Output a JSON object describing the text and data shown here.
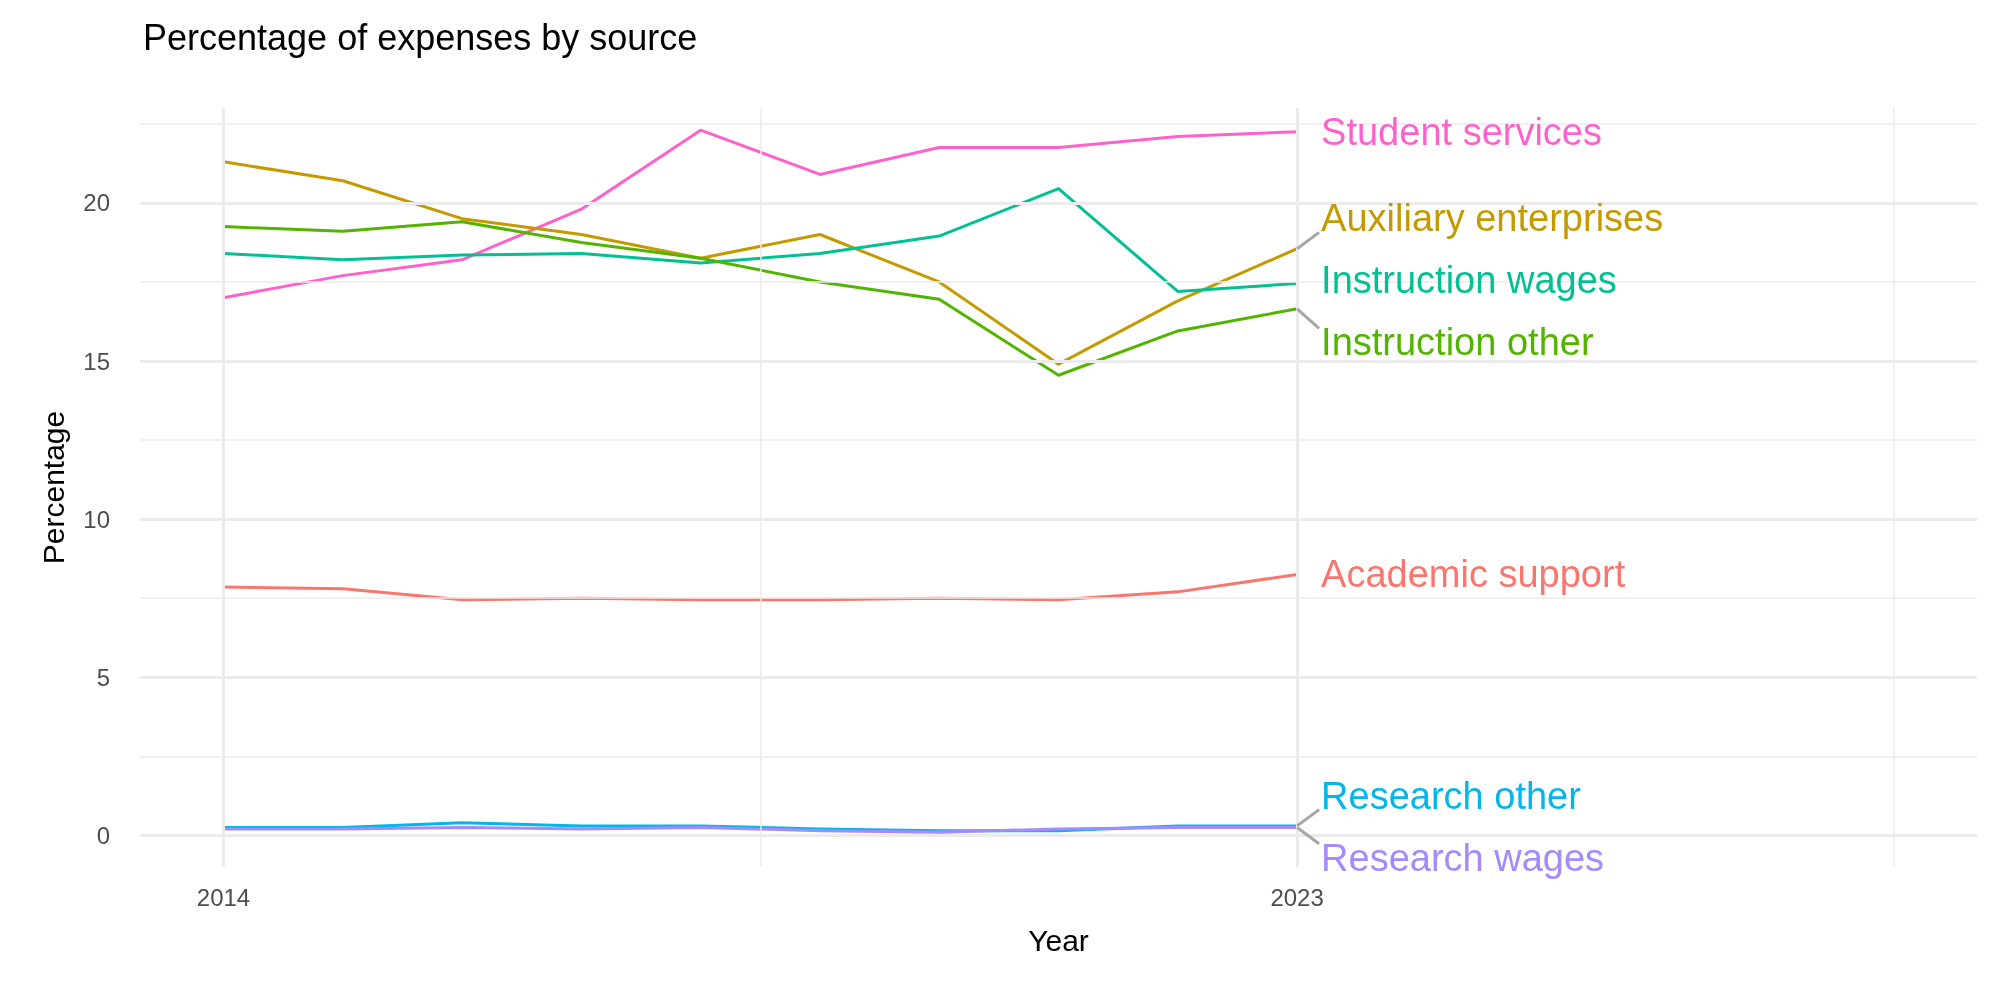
{
  "chart_data": {
    "type": "line",
    "title": "Percentage of expenses by source",
    "xlabel": "Year",
    "ylabel": "Percentage",
    "x": [
      2014,
      2015,
      2016,
      2017,
      2018,
      2019,
      2020,
      2021,
      2022,
      2023
    ],
    "xlim": [
      2013.3,
      2028.7
    ],
    "xticks": [
      2014,
      {
        "value": 2018.5,
        "label": null
      },
      2023,
      {
        "value": 2028,
        "label": null
      }
    ],
    "ylim": [
      -1,
      23
    ],
    "yticks": [
      0,
      {
        "value": 2.5,
        "label": null
      },
      5,
      {
        "value": 7.5,
        "label": null
      },
      10,
      {
        "value": 12.5,
        "label": null
      },
      15,
      {
        "value": 17.5,
        "label": null
      },
      20,
      {
        "value": 22.5,
        "label": null
      }
    ],
    "grid": true,
    "legend": false,
    "marker": "none",
    "line_style": "solid",
    "series": [
      {
        "name": "Student services",
        "color": "#ff61cc",
        "values": [
          17.0,
          17.7,
          18.2,
          19.8,
          22.3,
          20.9,
          21.75,
          21.75,
          22.1,
          22.25
        ]
      },
      {
        "name": "Auxiliary enterprises",
        "color": "#c49a00",
        "values": [
          21.3,
          20.7,
          19.5,
          19.0,
          18.25,
          19.0,
          17.5,
          14.9,
          16.9,
          18.55
        ]
      },
      {
        "name": "Instruction wages",
        "color": "#00c094",
        "values": [
          18.4,
          18.2,
          18.35,
          18.4,
          18.1,
          18.4,
          18.95,
          20.45,
          17.2,
          17.45
        ]
      },
      {
        "name": "Instruction other",
        "color": "#53b400",
        "values": [
          19.25,
          19.1,
          19.4,
          18.75,
          18.25,
          17.5,
          16.95,
          14.55,
          15.95,
          16.65
        ]
      },
      {
        "name": "Academic support",
        "color": "#f8766d",
        "values": [
          7.85,
          7.8,
          7.45,
          7.5,
          7.45,
          7.45,
          7.5,
          7.45,
          7.7,
          8.25
        ]
      },
      {
        "name": "Research other",
        "color": "#00b6eb",
        "values": [
          0.25,
          0.25,
          0.4,
          0.3,
          0.3,
          0.2,
          0.15,
          0.15,
          0.3,
          0.3
        ]
      },
      {
        "name": "Research wages",
        "color": "#a58aff",
        "values": [
          0.2,
          0.2,
          0.25,
          0.2,
          0.25,
          0.15,
          0.1,
          0.2,
          0.25,
          0.25
        ]
      }
    ]
  }
}
